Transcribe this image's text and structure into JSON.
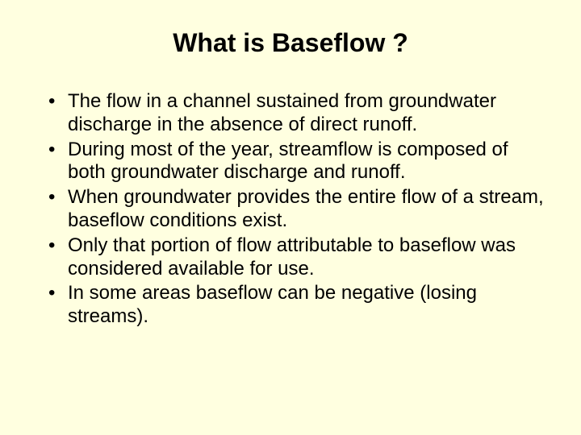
{
  "slide": {
    "background_color": "#ffffe0",
    "title": "What is Baseflow ?",
    "title_fontsize": 32,
    "title_fontweight": "bold",
    "title_color": "#000000",
    "body_fontsize": 24,
    "body_color": "#000000",
    "bullets": [
      "The flow in a channel sustained from groundwater discharge in the absence of direct runoff.",
      "During most of the year, streamflow is composed of both groundwater discharge and runoff.",
      "When groundwater provides the entire flow of a stream, baseflow conditions exist.",
      "Only that portion of flow attributable to baseflow was considered available for use.",
      "In some areas baseflow can be negative (losing streams)."
    ]
  }
}
